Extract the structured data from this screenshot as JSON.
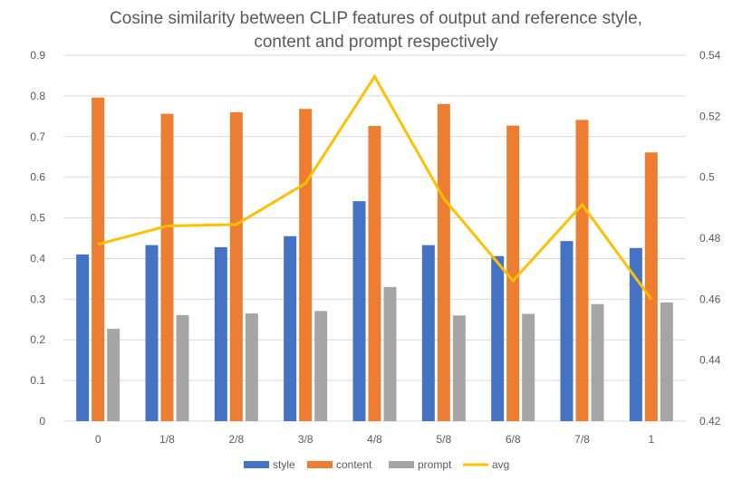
{
  "chart_data": {
    "type": "bar",
    "title_lines": [
      "Cosine similarity between CLIP features of output and reference style,",
      "content and prompt respectively"
    ],
    "categories": [
      "0",
      "1/8",
      "2/8",
      "3/8",
      "4/8",
      "5/8",
      "6/8",
      "7/8",
      "1"
    ],
    "series": [
      {
        "name": "style",
        "type": "bar",
        "axis": "left",
        "color": "#4472C4",
        "values": [
          0.41,
          0.433,
          0.428,
          0.455,
          0.541,
          0.433,
          0.406,
          0.443,
          0.426
        ]
      },
      {
        "name": "content",
        "type": "bar",
        "axis": "left",
        "color": "#ED7D31",
        "values": [
          0.796,
          0.756,
          0.76,
          0.768,
          0.726,
          0.78,
          0.727,
          0.741,
          0.661
        ]
      },
      {
        "name": "prompt",
        "type": "bar",
        "axis": "left",
        "color": "#A5A5A5",
        "values": [
          0.227,
          0.261,
          0.265,
          0.271,
          0.33,
          0.26,
          0.264,
          0.288,
          0.292
        ]
      },
      {
        "name": "avg",
        "type": "line",
        "axis": "right",
        "color": "#FFC000",
        "values": [
          0.478,
          0.484,
          0.4845,
          0.498,
          0.533,
          0.493,
          0.466,
          0.491,
          0.46
        ]
      }
    ],
    "y_left": {
      "min": 0,
      "max": 0.9,
      "step": 0.1,
      "tick_labels": [
        "0",
        "0.1",
        "0.2",
        "0.3",
        "0.4",
        "0.5",
        "0.6",
        "0.7",
        "0.8",
        "0.9"
      ]
    },
    "y_right": {
      "min": 0.42,
      "max": 0.54,
      "step": 0.02,
      "tick_labels": [
        "0.42",
        "0.44",
        "0.46",
        "0.48",
        "0.5",
        "0.52",
        "0.54"
      ]
    },
    "xlabel": "",
    "ylabel": "",
    "grid": true,
    "legend_position": "bottom"
  }
}
